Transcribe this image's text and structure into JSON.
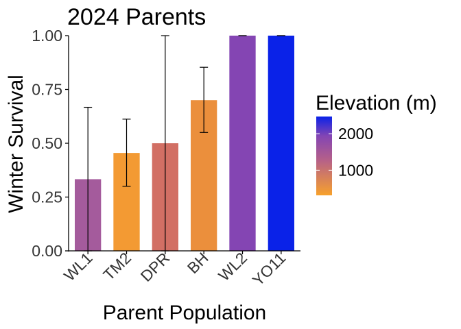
{
  "chart_data": {
    "type": "bar",
    "title": "2024 Parents",
    "xlabel": "Parent Population",
    "ylabel": "Winter Survival",
    "ylim": [
      0,
      1
    ],
    "yticks": [
      0,
      0.25,
      0.5,
      0.75,
      1
    ],
    "ytick_labels": [
      "0.00",
      "0.25",
      "0.50",
      "0.75",
      "1.00"
    ],
    "categories": [
      "WL1",
      "TM2",
      "DPR",
      "BH",
      "WL2",
      "YO11"
    ],
    "values": [
      0.333,
      0.455,
      0.5,
      0.7,
      1.0,
      1.0
    ],
    "error_low": [
      0.0,
      0.3,
      0.0,
      0.55,
      1.0,
      1.0
    ],
    "error_high": [
      0.667,
      0.612,
      1.0,
      0.853,
      1.0,
      1.0
    ],
    "elevation_m": [
      1614,
      313,
      1019,
      511,
      2020,
      2470
    ],
    "bar_colors": [
      "#A45B9C",
      "#F39A33",
      "#D26F64",
      "#EB8F3C",
      "#8445B3",
      "#0A22E8"
    ],
    "grid": false,
    "legend": {
      "title": "Elevation (m)",
      "placement": "right",
      "ticks": [
        1000,
        2000
      ],
      "tick_labels": [
        "1000",
        "2000"
      ],
      "range": [
        313,
        2470
      ],
      "color_low": "#F7A12C",
      "color_mid": "#A45B9C",
      "color_high": "#0A22E8"
    }
  }
}
